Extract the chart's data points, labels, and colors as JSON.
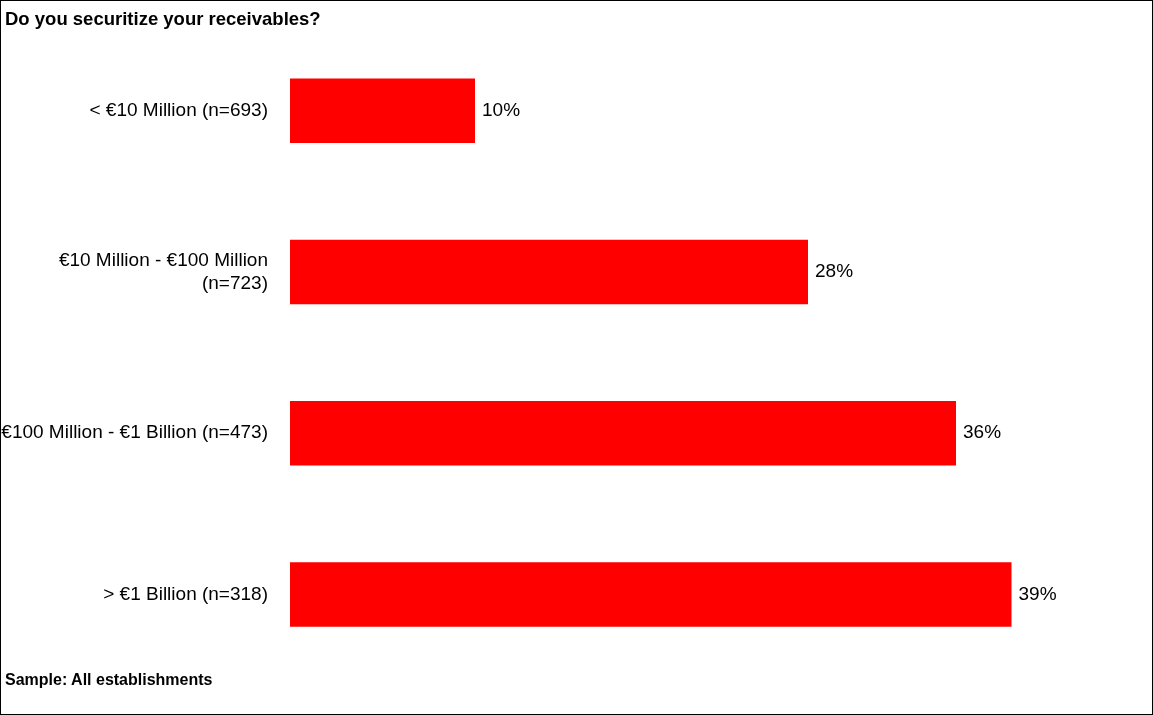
{
  "chart_data": {
    "type": "bar",
    "orientation": "horizontal",
    "title": "Do you securitize your receivables?",
    "categories": [
      "< €10 Million (n=693)",
      "€10 Million - €100 Million (n=723)",
      "€100 Million - €1 Billion (n=473)",
      "> €1 Billion (n=318)"
    ],
    "values": [
      10,
      28,
      36,
      39
    ],
    "color": "#ff0000",
    "data_labels": true,
    "value_labels": [
      "10%",
      "28%",
      "36%",
      "39%"
    ],
    "tick_labels": "y",
    "grid": false,
    "legend": false,
    "annotations": [
      "Sample: All establishments"
    ]
  }
}
